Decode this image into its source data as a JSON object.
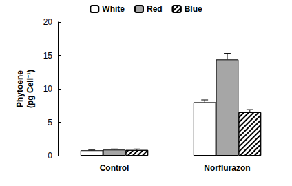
{
  "chart_data": {
    "type": "bar",
    "y_label": "Phytoene\n(pg Cell⁻¹)",
    "categories": [
      "Control",
      "Norflurazon"
    ],
    "series": [
      {
        "name": "White",
        "color": "#ffffff",
        "values": [
          0.8,
          8.0
        ],
        "errors": [
          0.05,
          0.35
        ]
      },
      {
        "name": "Red",
        "color": "#a6a6a6",
        "values": [
          0.9,
          14.4
        ],
        "errors": [
          0.1,
          0.9
        ]
      },
      {
        "name": "Blue",
        "color": "#ffffff",
        "marker": "hatch",
        "values": [
          0.85,
          6.5
        ],
        "errors": [
          0.15,
          0.4
        ]
      }
    ],
    "ylim": [
      0,
      20
    ],
    "yticks": [
      0,
      5,
      10,
      15,
      20
    ],
    "grid": false,
    "legend": "top"
  }
}
